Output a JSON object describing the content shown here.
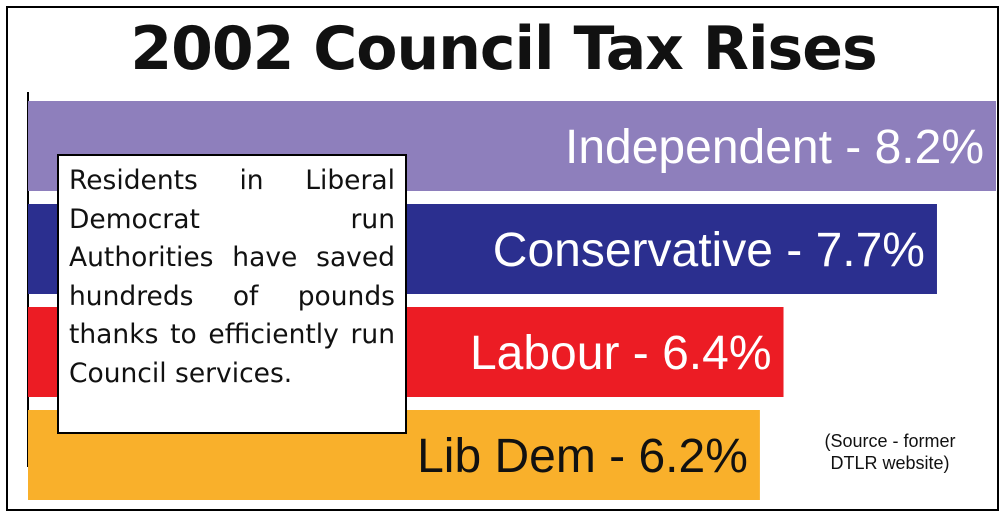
{
  "chart_data": {
    "type": "bar",
    "orientation": "horizontal",
    "title": "2002 Council Tax Rises",
    "categories": [
      "Independent",
      "Conservative",
      "Labour",
      "Lib Dem"
    ],
    "values": [
      8.2,
      7.7,
      6.4,
      6.2
    ],
    "unit": "%",
    "bar_labels": [
      "Independent - 8.2%",
      "Conservative - 7.7%",
      "Labour - 6.4%",
      "Lib Dem - 6.2%"
    ],
    "colors": [
      "#8e7fbc",
      "#2b2f8f",
      "#ec1c24",
      "#f9b02b"
    ],
    "xlim": [
      0,
      8.2
    ],
    "grid": false,
    "legend": "none"
  },
  "note": "Residents in Liberal Democrat run Authorities have saved hundreds of pounds thanks to efficiently run Council services.",
  "source": {
    "line1": "(Source - former",
    "line2": "DTLR website)"
  }
}
